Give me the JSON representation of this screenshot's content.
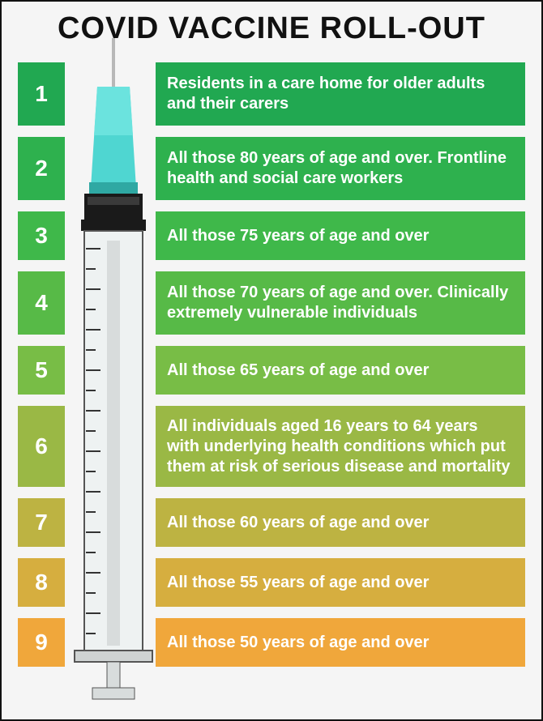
{
  "title": "COVID VACCINE ROLL-OUT",
  "background": "#f5f5f5",
  "frame_border": "#111111",
  "title_color": "#111111",
  "title_fontsize": 38,
  "row_height_normal": 78,
  "row_height_tall": 100,
  "row_height_short": 60,
  "row_gap": 14,
  "numbox_width": 58,
  "syringe_gap_width": 112,
  "label_fontsize": 20,
  "number_fontsize": 28,
  "text_color": "#ffffff",
  "rows": [
    {
      "n": "1",
      "color": "#21a851",
      "text": "Residents in a care home for older adults and their carers",
      "size": "normal"
    },
    {
      "n": "2",
      "color": "#2eb14e",
      "text": "All those 80 years of age and over. Frontline health and social care workers",
      "size": "normal"
    },
    {
      "n": "3",
      "color": "#3fb84a",
      "text": "All those 75 years of age and over",
      "size": "short"
    },
    {
      "n": "4",
      "color": "#57ba47",
      "text": "All those 70 years of age and over. Clinically extremely vulnerable individuals",
      "size": "normal"
    },
    {
      "n": "5",
      "color": "#78bd46",
      "text": "All those 65 years of age and over",
      "size": "short"
    },
    {
      "n": "6",
      "color": "#9ab845",
      "text": "All individuals aged 16 years to 64 years with underlying health conditions which put them  at risk of serious disease and mortality",
      "size": "tall"
    },
    {
      "n": "7",
      "color": "#bdb342",
      "text": "All those 60 years of age and over",
      "size": "short"
    },
    {
      "n": "8",
      "color": "#d6ae3f",
      "text": "All those 55 years of age and over",
      "size": "short"
    },
    {
      "n": "9",
      "color": "#f0a73b",
      "text": "All those 50 years of age and over",
      "size": "short"
    }
  ],
  "syringe": {
    "needle_color": "#b8b8b8",
    "hub_top": "#4fd6d1",
    "hub_bottom": "#2fa8a3",
    "collar_dark": "#1a1a1a",
    "collar_mid": "#3a3a3a",
    "barrel_fill": "#eef2f2",
    "barrel_stroke": "#555555",
    "plunger": "#d8dcdc",
    "tick_color": "#333333"
  }
}
